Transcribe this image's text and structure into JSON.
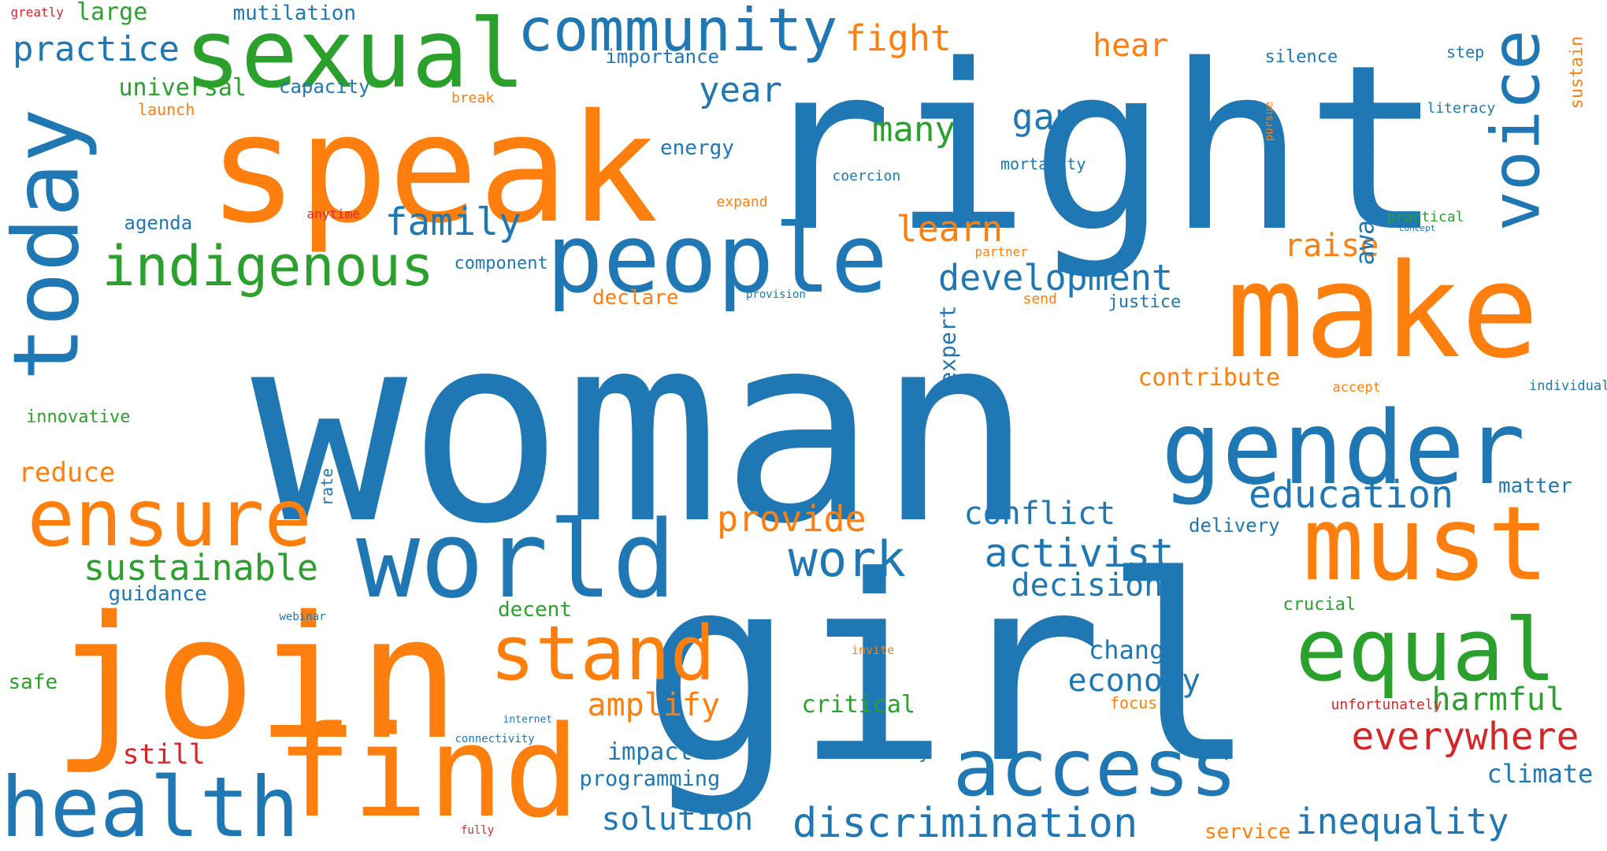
{
  "palette": {
    "blue": "#1f77b4",
    "orange": "#ff7f0e",
    "green": "#2ca02c",
    "red": "#d62728"
  },
  "words": [
    {
      "text": "woman",
      "color": "blue"
    },
    {
      "text": "right",
      "color": "blue"
    },
    {
      "text": "girl",
      "color": "blue"
    },
    {
      "text": "speak",
      "color": "orange"
    },
    {
      "text": "make",
      "color": "orange"
    },
    {
      "text": "join",
      "color": "orange"
    },
    {
      "text": "sexual",
      "color": "green"
    },
    {
      "text": "world",
      "color": "blue"
    },
    {
      "text": "gender",
      "color": "blue"
    },
    {
      "text": "people",
      "color": "blue"
    },
    {
      "text": "find",
      "color": "orange"
    },
    {
      "text": "must",
      "color": "orange"
    },
    {
      "text": "equal",
      "color": "green"
    },
    {
      "text": "today",
      "color": "blue"
    },
    {
      "text": "ensure",
      "color": "orange"
    },
    {
      "text": "health",
      "color": "blue"
    },
    {
      "text": "access",
      "color": "blue"
    },
    {
      "text": "stand",
      "color": "orange"
    },
    {
      "text": "voice",
      "color": "blue"
    },
    {
      "text": "community",
      "color": "blue"
    },
    {
      "text": "indigenous",
      "color": "green"
    },
    {
      "text": "work",
      "color": "blue"
    },
    {
      "text": "discrimination",
      "color": "blue"
    },
    {
      "text": "everywhere",
      "color": "red"
    },
    {
      "text": "activist",
      "color": "blue"
    },
    {
      "text": "family",
      "color": "blue"
    },
    {
      "text": "development",
      "color": "blue"
    },
    {
      "text": "education",
      "color": "blue"
    },
    {
      "text": "inequality",
      "color": "blue"
    },
    {
      "text": "provide",
      "color": "orange"
    },
    {
      "text": "sustainable",
      "color": "green"
    },
    {
      "text": "amplify",
      "color": "orange"
    },
    {
      "text": "learn",
      "color": "orange"
    },
    {
      "text": "economy",
      "color": "blue"
    },
    {
      "text": "fight",
      "color": "orange"
    },
    {
      "text": "practice",
      "color": "blue"
    },
    {
      "text": "decision",
      "color": "blue"
    },
    {
      "text": "conflict",
      "color": "blue"
    },
    {
      "text": "solution",
      "color": "blue"
    },
    {
      "text": "harmful",
      "color": "green"
    },
    {
      "text": "year",
      "color": "blue"
    },
    {
      "text": "many",
      "color": "green"
    },
    {
      "text": "gap",
      "color": "blue"
    },
    {
      "text": "raise",
      "color": "orange"
    },
    {
      "text": "hear",
      "color": "orange"
    },
    {
      "text": "awareness",
      "color": "blue"
    },
    {
      "text": "reduce",
      "color": "orange"
    },
    {
      "text": "change",
      "color": "blue"
    },
    {
      "text": "climate",
      "color": "blue"
    },
    {
      "text": "impact",
      "color": "blue"
    },
    {
      "text": "contribute",
      "color": "orange"
    },
    {
      "text": "universal",
      "color": "green"
    },
    {
      "text": "still",
      "color": "red"
    },
    {
      "text": "critical",
      "color": "green"
    },
    {
      "text": "large",
      "color": "green"
    },
    {
      "text": "expert",
      "color": "blue"
    },
    {
      "text": "programming",
      "color": "blue"
    },
    {
      "text": "mutilation",
      "color": "blue"
    },
    {
      "text": "energy",
      "color": "blue"
    },
    {
      "text": "capacity",
      "color": "blue"
    },
    {
      "text": "importance",
      "color": "blue"
    },
    {
      "text": "guidance",
      "color": "blue"
    },
    {
      "text": "matter",
      "color": "blue"
    },
    {
      "text": "delivery",
      "color": "blue"
    },
    {
      "text": "innovative",
      "color": "green"
    },
    {
      "text": "safe",
      "color": "green"
    },
    {
      "text": "decent",
      "color": "green"
    },
    {
      "text": "crucial",
      "color": "green"
    },
    {
      "text": "silence",
      "color": "blue"
    },
    {
      "text": "service",
      "color": "orange"
    },
    {
      "text": "justice",
      "color": "blue"
    },
    {
      "text": "declare",
      "color": "orange"
    },
    {
      "text": "component",
      "color": "blue"
    },
    {
      "text": "agenda",
      "color": "blue"
    },
    {
      "text": "mortality",
      "color": "blue"
    },
    {
      "text": "body",
      "color": "blue"
    },
    {
      "text": "sustain",
      "color": "orange"
    },
    {
      "text": "step",
      "color": "blue"
    },
    {
      "text": "literacy",
      "color": "blue"
    },
    {
      "text": "practical",
      "color": "green"
    },
    {
      "text": "launch",
      "color": "orange"
    },
    {
      "text": "break",
      "color": "orange"
    },
    {
      "text": "greatly",
      "color": "red"
    },
    {
      "text": "coercion",
      "color": "blue"
    },
    {
      "text": "expand",
      "color": "orange"
    },
    {
      "text": "send",
      "color": "orange"
    },
    {
      "text": "rate",
      "color": "blue"
    },
    {
      "text": "individual",
      "color": "blue"
    },
    {
      "text": "accept",
      "color": "orange"
    },
    {
      "text": "unfortunately",
      "color": "red"
    },
    {
      "text": "focus",
      "color": "orange"
    },
    {
      "text": "anytime",
      "color": "red"
    },
    {
      "text": "pursue",
      "color": "orange"
    },
    {
      "text": "partner",
      "color": "orange"
    },
    {
      "text": "provision",
      "color": "blue"
    },
    {
      "text": "concept",
      "color": "blue"
    },
    {
      "text": "webinar",
      "color": "blue"
    },
    {
      "text": "invite",
      "color": "orange"
    },
    {
      "text": "internet",
      "color": "blue"
    },
    {
      "text": "connectivity",
      "color": "blue"
    },
    {
      "text": "fully",
      "color": "red"
    }
  ]
}
